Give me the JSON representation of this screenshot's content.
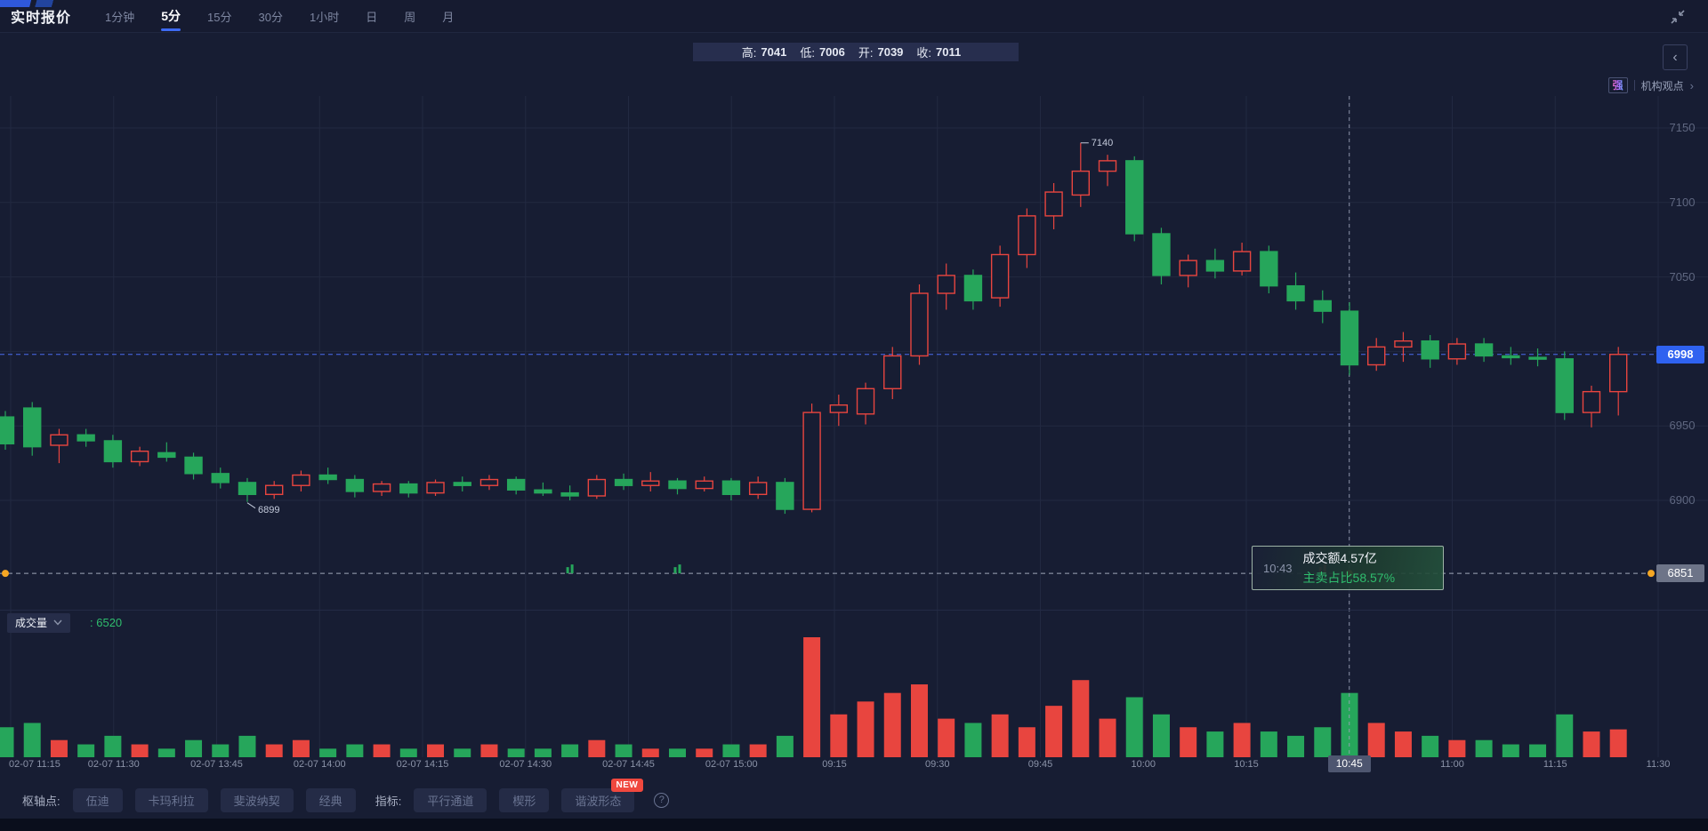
{
  "header": {
    "title": "实时报价",
    "timeframes": [
      "1分钟",
      "5分",
      "15分",
      "30分",
      "1小时",
      "日",
      "周",
      "月"
    ],
    "active_timeframe": "5分"
  },
  "ohlc_bar": {
    "high_label": "高:",
    "high_value": "7041",
    "low_label": "低:",
    "low_value": "7006",
    "open_label": "开:",
    "open_value": "7039",
    "close_label": "收:",
    "close_value": "7011"
  },
  "insight": {
    "strength_badge": "强",
    "link_label": "机构观点",
    "chevron": "›"
  },
  "crosshair": {
    "axis_time": "10:45",
    "tooltip_time": "10:43",
    "tooltip_amount": "成交额4.57亿",
    "tooltip_ratio": "主卖占比58.57%"
  },
  "volume_pane": {
    "indicator_label": "成交量",
    "current_value": ": 6520"
  },
  "annotations": {
    "peak_label": "7140",
    "trough_label": "6899"
  },
  "price_axis": {
    "current_tag": "6998",
    "crosshair_tag": "6851"
  },
  "toolbar": {
    "pivot_label": "枢轴点:",
    "pivot_buttons": [
      "伍迪",
      "卡玛利拉",
      "斐波纳契",
      "经典"
    ],
    "indicator_label": "指标:",
    "indicator_buttons": [
      "平行通道",
      "楔形",
      "谐波形态"
    ],
    "new_badge": "NEW",
    "help_icon": "?"
  },
  "colors": {
    "up": "#e8453f",
    "down": "#26a65b",
    "accent_blue": "#2f62f0",
    "volume_value_green": "#2fbd6d",
    "crosshair_tag_bg": "#6d7488",
    "grid": "#222941",
    "background": "#171d33"
  },
  "chart_data": {
    "type": "candlestick_with_volume",
    "timeframe": "5分",
    "title": "实时报价 5分 K线",
    "y_ticks": [
      7150,
      7100,
      7050,
      6950,
      6900
    ],
    "grid_prices": [
      7150,
      7100,
      7050,
      7000,
      6950,
      6900
    ],
    "price_range": [
      6834,
      7172
    ],
    "current_price": 6998,
    "crosshair_price": 6851,
    "peak_annotation": {
      "candle_index": 40,
      "price": 7140
    },
    "trough_annotation": {
      "candle_index": 9,
      "price": 6899
    },
    "crosshair_candle_index": 50,
    "x_labels": [
      "02-07 11:15",
      "02-07 11:30",
      "02-07 13:45",
      "02-07 14:00",
      "02-07 14:15",
      "02-07 14:30",
      "02-07 14:45",
      "02-07 15:00",
      "09:15",
      "09:30",
      "09:45",
      "10:00",
      "10:15",
      "10:45",
      "11:00",
      "11:15",
      "11:30"
    ],
    "crosshair_x_label_index": 13,
    "candles": [
      [
        6956,
        6960,
        6934,
        6938
      ],
      [
        6962,
        6966,
        6930,
        6936
      ],
      [
        6937,
        6948,
        6925,
        6944
      ],
      [
        6944,
        6948,
        6936,
        6940
      ],
      [
        6940,
        6944,
        6922,
        6926
      ],
      [
        6926,
        6936,
        6923,
        6933
      ],
      [
        6932,
        6939,
        6926,
        6929
      ],
      [
        6929,
        6932,
        6914,
        6918
      ],
      [
        6918,
        6922,
        6908,
        6912
      ],
      [
        6912,
        6915,
        6899,
        6904
      ],
      [
        6904,
        6913,
        6901,
        6910
      ],
      [
        6910,
        6920,
        6906,
        6917
      ],
      [
        6917,
        6922,
        6911,
        6914
      ],
      [
        6914,
        6917,
        6902,
        6906
      ],
      [
        6906,
        6913,
        6903,
        6911
      ],
      [
        6911,
        6913,
        6902,
        6905
      ],
      [
        6905,
        6914,
        6903,
        6912
      ],
      [
        6912,
        6916,
        6906,
        6910
      ],
      [
        6910,
        6917,
        6907,
        6914
      ],
      [
        6914,
        6916,
        6904,
        6907
      ],
      [
        6907,
        6912,
        6903,
        6905
      ],
      [
        6905,
        6910,
        6900,
        6903
      ],
      [
        6903,
        6917,
        6901,
        6914
      ],
      [
        6914,
        6918,
        6907,
        6910
      ],
      [
        6910,
        6919,
        6906,
        6913
      ],
      [
        6913,
        6915,
        6904,
        6908
      ],
      [
        6908,
        6916,
        6906,
        6913
      ],
      [
        6913,
        6915,
        6900,
        6904
      ],
      [
        6904,
        6916,
        6901,
        6912
      ],
      [
        6912,
        6915,
        6891,
        6894
      ],
      [
        6894,
        6965,
        6892,
        6959
      ],
      [
        6959,
        6971,
        6950,
        6964
      ],
      [
        6958,
        6979,
        6951,
        6975
      ],
      [
        6975,
        7003,
        6968,
        6997
      ],
      [
        6997,
        7045,
        6991,
        7039
      ],
      [
        7039,
        7059,
        7028,
        7051
      ],
      [
        7051,
        7055,
        7028,
        7034
      ],
      [
        7036,
        7071,
        7030,
        7065
      ],
      [
        7065,
        7096,
        7056,
        7091
      ],
      [
        7091,
        7113,
        7082,
        7107
      ],
      [
        7105,
        7140,
        7097,
        7121
      ],
      [
        7121,
        7132,
        7111,
        7128
      ],
      [
        7128,
        7131,
        7074,
        7079
      ],
      [
        7079,
        7083,
        7045,
        7051
      ],
      [
        7051,
        7065,
        7043,
        7061
      ],
      [
        7061,
        7069,
        7049,
        7054
      ],
      [
        7054,
        7073,
        7051,
        7067
      ],
      [
        7067,
        7071,
        7039,
        7044
      ],
      [
        7044,
        7053,
        7028,
        7034
      ],
      [
        7034,
        7041,
        7019,
        7027
      ],
      [
        7027,
        7033,
        6984,
        6991
      ],
      [
        6991,
        7009,
        6987,
        7003
      ],
      [
        7003,
        7013,
        6993,
        7007
      ],
      [
        7007,
        7011,
        6989,
        6995
      ],
      [
        6995,
        7009,
        6991,
        7005
      ],
      [
        7005,
        7009,
        6993,
        6997
      ],
      [
        6997,
        7003,
        6991,
        6996
      ],
      [
        6996,
        7002,
        6990,
        6995
      ],
      [
        6995,
        7000,
        6954,
        6959
      ],
      [
        6959,
        6977,
        6949,
        6973
      ],
      [
        6973,
        7003,
        6957,
        6998
      ]
    ],
    "volumes": [
      7000,
      8000,
      4000,
      3000,
      5000,
      3000,
      2000,
      4000,
      3000,
      5000,
      3000,
      4000,
      2000,
      3000,
      3000,
      2000,
      3000,
      2000,
      3000,
      2000,
      2000,
      3000,
      4000,
      3000,
      2000,
      2000,
      2000,
      3000,
      3000,
      5000,
      28000,
      10000,
      13000,
      15000,
      17000,
      9000,
      8000,
      10000,
      7000,
      12000,
      18000,
      9000,
      14000,
      10000,
      7000,
      6000,
      8000,
      6000,
      5000,
      7000,
      15000,
      8000,
      6000,
      5000,
      4000,
      4000,
      3000,
      3000,
      10000,
      6000,
      6500
    ],
    "volume_axis_max": 28000,
    "legend_position": "none",
    "grid": true
  }
}
